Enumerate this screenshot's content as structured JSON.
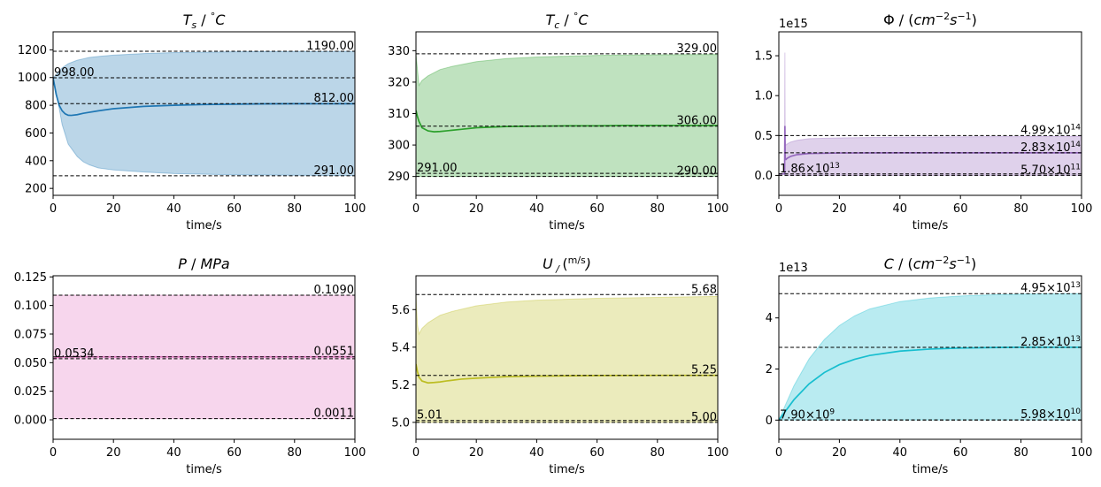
{
  "figure": {
    "xlabel": "time/s"
  },
  "chart_data": [
    {
      "type": "area",
      "title": "T_s / °C",
      "title_parts": [
        "T",
        "s",
        " / ",
        "°",
        "C"
      ],
      "color": "#1f77b4",
      "fill_color": "#1f77b4",
      "xlabel": "time/s",
      "xlim": [
        0,
        100
      ],
      "ylim": [
        150,
        1330
      ],
      "xticks": [
        0,
        20,
        40,
        60,
        80,
        100
      ],
      "yticks": [
        200,
        400,
        600,
        800,
        1000,
        1200
      ],
      "ytick_labels": [
        "200",
        "400",
        "600",
        "800",
        "1000",
        "1200"
      ],
      "ref_lines": [
        {
          "value": 1190,
          "label": "1190.00"
        },
        {
          "value": 998,
          "label": "998.00",
          "pos": "left"
        },
        {
          "value": 812,
          "label": "812.00"
        },
        {
          "value": 291,
          "label": "291.00"
        }
      ],
      "mean": {
        "x": [
          0,
          0.5,
          1,
          2,
          3,
          4,
          5,
          6,
          8,
          10,
          15,
          20,
          30,
          40,
          50,
          60,
          70,
          80,
          90,
          100
        ],
        "y": [
          998,
          940,
          880,
          800,
          760,
          738,
          728,
          727,
          732,
          742,
          760,
          775,
          792,
          800,
          805,
          808,
          810,
          811,
          811,
          811
        ]
      },
      "band": {
        "x": [
          0,
          1,
          2,
          3,
          5,
          8,
          10,
          12,
          15,
          20,
          30,
          40,
          60,
          80,
          100
        ],
        "upper": [
          998,
          1020,
          1045,
          1070,
          1100,
          1125,
          1135,
          1145,
          1152,
          1162,
          1173,
          1180,
          1186,
          1188,
          1189
        ],
        "lower": [
          998,
          900,
          780,
          660,
          520,
          430,
          392,
          370,
          348,
          333,
          318,
          307,
          298,
          295,
          293
        ]
      }
    },
    {
      "type": "area",
      "title": "T_c / °C",
      "title_parts": [
        "T",
        "c",
        " / ",
        "°",
        "C"
      ],
      "color": "#2ca02c",
      "fill_color": "#2ca02c",
      "xlabel": "time/s",
      "xlim": [
        0,
        100
      ],
      "ylim": [
        284,
        336
      ],
      "xticks": [
        0,
        20,
        40,
        60,
        80,
        100
      ],
      "yticks": [
        290,
        300,
        310,
        320,
        330
      ],
      "ytick_labels": [
        "290",
        "300",
        "310",
        "320",
        "330"
      ],
      "ref_lines": [
        {
          "value": 329,
          "label": "329.00"
        },
        {
          "value": 306,
          "label": "306.00"
        },
        {
          "value": 291,
          "label": "291.00",
          "pos": "left"
        },
        {
          "value": 290,
          "label": "290.00"
        }
      ],
      "mean": {
        "x": [
          0,
          0.5,
          1,
          2,
          4,
          6,
          8,
          10,
          15,
          20,
          30,
          40,
          50,
          60,
          70,
          80,
          90,
          100
        ],
        "y": [
          311,
          309,
          307.5,
          305.5,
          304.5,
          304.2,
          304.3,
          304.5,
          305,
          305.5,
          305.9,
          306,
          306.1,
          306.1,
          306.2,
          306.2,
          306.2,
          306.2
        ]
      },
      "band": {
        "x": [
          0,
          0.5,
          1,
          2,
          4,
          8,
          12,
          20,
          30,
          40,
          60,
          80,
          100
        ],
        "upper": [
          329,
          324,
          319,
          320.5,
          322,
          324,
          325,
          326.5,
          327.5,
          328,
          328.5,
          328.7,
          328.8
        ],
        "lower": [
          290,
          290,
          290,
          290,
          290,
          290,
          290,
          290,
          290,
          290,
          290,
          290,
          290
        ]
      }
    },
    {
      "type": "area",
      "title": "Φ / (cm^-2 s^-1)",
      "title_parts": [
        "Φ",
        " / ",
        "(",
        "cm",
        "−2",
        "s",
        "−1",
        ")"
      ],
      "color": "#9467bd",
      "fill_color": "#9467bd",
      "xlabel": "time/s",
      "xlim": [
        0,
        100
      ],
      "ylim": [
        -0.25,
        1.8
      ],
      "y_multiplier": "1e15",
      "xticks": [
        0,
        20,
        40,
        60,
        80,
        100
      ],
      "yticks": [
        0.0,
        0.5,
        1.0,
        1.5
      ],
      "ytick_labels": [
        "0.0",
        "0.5",
        "1.0",
        "1.5"
      ],
      "ref_lines": [
        {
          "value": 0.499,
          "label_mant": "4.99",
          "label_exp": "14"
        },
        {
          "value": 0.283,
          "label_mant": "2.83",
          "label_exp": "14"
        },
        {
          "value": 0.0186,
          "label_mant": "1.86",
          "label_exp": "13",
          "pos": "left"
        },
        {
          "value": 0.00057,
          "label_mant": "5.70",
          "label_exp": "11"
        }
      ],
      "mean": {
        "x": [
          0,
          1.9,
          2.0,
          2.1,
          2.2,
          2.4,
          2.6,
          3,
          4,
          6,
          10,
          20,
          40,
          60,
          80,
          100
        ],
        "y": [
          0.0186,
          0.0186,
          0.62,
          0.22,
          0.2,
          0.2,
          0.21,
          0.22,
          0.24,
          0.26,
          0.275,
          0.281,
          0.283,
          0.283,
          0.283,
          0.283
        ]
      },
      "band": {
        "x": [
          0,
          1.9,
          2.0,
          2.1,
          2.3,
          3,
          4,
          6,
          10,
          20,
          40,
          100
        ],
        "upper": [
          0.0186,
          0.0186,
          1.54,
          0.45,
          0.38,
          0.4,
          0.42,
          0.44,
          0.46,
          0.47,
          0.48,
          0.49
        ],
        "lower": [
          0.0186,
          0.0186,
          0.0006,
          0.0006,
          0.0006,
          0.0006,
          0.0006,
          0.0006,
          0.0006,
          0.0006,
          0.0006,
          0.0006
        ]
      }
    },
    {
      "type": "area",
      "title": "P / MPa",
      "title_parts": [
        "P",
        " / ",
        "MPa"
      ],
      "color": "#e377c2",
      "fill_color": "#e377c2",
      "xlabel": "time/s",
      "xlim": [
        0,
        100
      ],
      "ylim": [
        -0.017,
        0.126
      ],
      "xticks": [
        0,
        20,
        40,
        60,
        80,
        100
      ],
      "yticks": [
        0.0,
        0.025,
        0.05,
        0.075,
        0.1,
        0.125
      ],
      "ytick_labels": [
        "0.000",
        "0.025",
        "0.050",
        "0.075",
        "0.100",
        "0.125"
      ],
      "ref_lines": [
        {
          "value": 0.109,
          "label": "0.1090"
        },
        {
          "value": 0.0551,
          "label": "0.0551"
        },
        {
          "value": 0.0534,
          "label": "0.0534",
          "pos": "left"
        },
        {
          "value": 0.0011,
          "label": "0.0011"
        }
      ],
      "mean": {
        "x": [
          0,
          1,
          3,
          10,
          50,
          100
        ],
        "y": [
          0.0534,
          0.0545,
          0.055,
          0.0551,
          0.0551,
          0.0551
        ]
      },
      "band": {
        "x": [
          0,
          100
        ],
        "upper": [
          0.109,
          0.109
        ],
        "lower": [
          0.0011,
          0.0011
        ]
      }
    },
    {
      "type": "area",
      "title": "U / (m/s)",
      "title_parts": [
        "U",
        " / ",
        "(",
        "m/s",
        ")"
      ],
      "color": "#bcbd22",
      "fill_color": "#bcbd22",
      "xlabel": "time/s",
      "xlim": [
        0,
        100
      ],
      "ylim": [
        4.91,
        5.78
      ],
      "xticks": [
        0,
        20,
        40,
        60,
        80,
        100
      ],
      "yticks": [
        5.0,
        5.2,
        5.4,
        5.6
      ],
      "ytick_labels": [
        "5.0",
        "5.2",
        "5.4",
        "5.6"
      ],
      "ref_lines": [
        {
          "value": 5.68,
          "label": "5.68"
        },
        {
          "value": 5.25,
          "label": "5.25"
        },
        {
          "value": 5.01,
          "label": "5.01",
          "pos": "left"
        },
        {
          "value": 5.0,
          "label": "5.00"
        }
      ],
      "mean": {
        "x": [
          0,
          0.5,
          1,
          2,
          4,
          6,
          8,
          10,
          15,
          20,
          30,
          40,
          60,
          80,
          100
        ],
        "y": [
          5.31,
          5.27,
          5.24,
          5.22,
          5.21,
          5.212,
          5.215,
          5.22,
          5.23,
          5.235,
          5.243,
          5.246,
          5.249,
          5.25,
          5.25
        ]
      },
      "band": {
        "x": [
          0,
          0.5,
          1,
          2,
          4,
          8,
          12,
          20,
          30,
          40,
          60,
          80,
          100
        ],
        "upper": [
          5.68,
          5.52,
          5.47,
          5.5,
          5.53,
          5.57,
          5.59,
          5.62,
          5.64,
          5.65,
          5.66,
          5.665,
          5.67
        ],
        "lower": [
          5.0,
          5.0,
          5.0,
          5.0,
          5.0,
          5.0,
          5.0,
          5.0,
          5.0,
          5.0,
          5.0,
          5.0,
          5.0
        ]
      }
    },
    {
      "type": "area",
      "title": "C / (cm^-2 s^-1)",
      "title_parts": [
        "C",
        " / ",
        "(",
        "cm",
        "−2",
        "s",
        "−1",
        ")"
      ],
      "color": "#17becf",
      "fill_color": "#17becf",
      "xlabel": "time/s",
      "xlim": [
        0,
        100
      ],
      "ylim": [
        -0.75,
        5.65
      ],
      "y_multiplier": "1e13",
      "xticks": [
        0,
        20,
        40,
        60,
        80,
        100
      ],
      "yticks": [
        0,
        2,
        4
      ],
      "ytick_labels": [
        "0",
        "2",
        "4"
      ],
      "ref_lines": [
        {
          "value": 4.95,
          "label_mant": "4.95",
          "label_exp": "13"
        },
        {
          "value": 2.85,
          "label_mant": "2.85",
          "label_exp": "13"
        },
        {
          "value": 0.00079,
          "label_mant": "7.90",
          "label_exp": "9",
          "pos": "left"
        },
        {
          "value": 0.00598,
          "label_mant": "5.98",
          "label_exp": "10"
        }
      ],
      "mean": {
        "x": [
          0,
          2,
          5,
          10,
          15,
          20,
          25,
          30,
          40,
          50,
          60,
          70,
          80,
          90,
          100
        ],
        "y": [
          0.0008,
          0.32,
          0.8,
          1.42,
          1.86,
          2.17,
          2.38,
          2.53,
          2.7,
          2.78,
          2.82,
          2.84,
          2.85,
          2.85,
          2.85
        ]
      },
      "band": {
        "x": [
          0,
          2,
          5,
          10,
          15,
          20,
          25,
          30,
          40,
          50,
          60,
          70,
          80,
          90,
          100
        ],
        "upper": [
          0.0008,
          0.55,
          1.35,
          2.4,
          3.15,
          3.7,
          4.08,
          4.35,
          4.64,
          4.78,
          4.86,
          4.9,
          4.93,
          4.94,
          4.95
        ],
        "lower": [
          0.0008,
          0.006,
          0.006,
          0.006,
          0.006,
          0.006,
          0.006,
          0.006,
          0.006,
          0.006,
          0.006,
          0.006,
          0.006,
          0.006,
          0.006
        ]
      }
    }
  ]
}
